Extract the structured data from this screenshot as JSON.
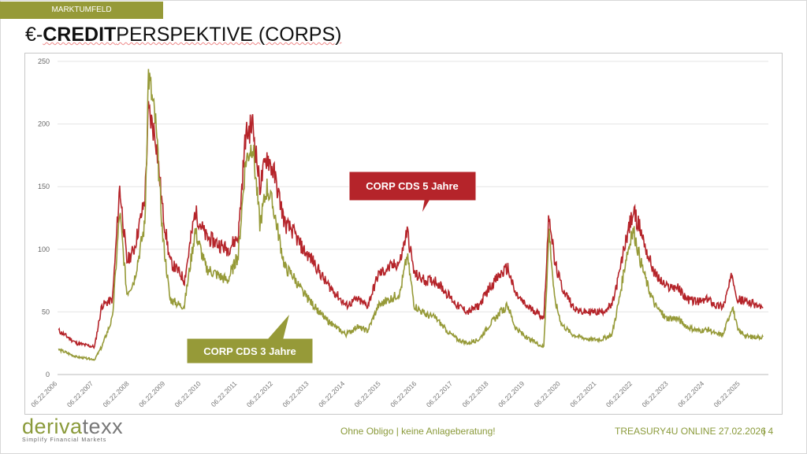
{
  "header": {
    "section": "MARKTUMFELD",
    "title_prefix": "€-",
    "title_bold": "CREDIT",
    "title_rest": "PERSPEKTIVE (CORPS)"
  },
  "footer": {
    "logo": "derivatexx",
    "logo_tagline": "Simplify Financial Markets",
    "disclaimer": "Ohne Obligo | keine Anlageberatung!",
    "event": "TREASURY4U ONLINE 27.02.2026",
    "page": "| 4"
  },
  "colors": {
    "cds5": "#b5242a",
    "cds3": "#969a38"
  },
  "chart_data": {
    "type": "line",
    "title": "€-CREDITPERSPEKTIVE (CORPS)",
    "ylim": [
      0,
      250
    ],
    "yticks": [
      0,
      50,
      100,
      150,
      200,
      250
    ],
    "xticks": [
      "06.22.2006",
      "06.22.2007",
      "06.22.2008",
      "06.22.2009",
      "06.22.2010",
      "06.22.2011",
      "06.22.2012",
      "06.22.2013",
      "06.22.2014",
      "06.22.2015",
      "06.22.2016",
      "06.22.2017",
      "06.22.2018",
      "06.22.2019",
      "06.22.2020",
      "06.22.2021",
      "06.22.2022",
      "06.22.2023",
      "06.22.2024",
      "06.22.2025"
    ],
    "x": [
      2006.5,
      2007.0,
      2007.5,
      2007.7,
      2008.0,
      2008.2,
      2008.4,
      2008.6,
      2008.9,
      2009.0,
      2009.2,
      2009.4,
      2009.6,
      2009.9,
      2010.0,
      2010.3,
      2010.6,
      2010.9,
      2011.2,
      2011.5,
      2011.7,
      2011.9,
      2012.1,
      2012.3,
      2012.5,
      2012.8,
      2013.0,
      2013.3,
      2013.6,
      2013.9,
      2014.2,
      2014.5,
      2014.8,
      2015.1,
      2015.4,
      2015.7,
      2016.0,
      2016.2,
      2016.4,
      2016.7,
      2017.0,
      2017.3,
      2017.6,
      2017.9,
      2018.2,
      2018.5,
      2018.8,
      2019.0,
      2019.2,
      2019.5,
      2019.8,
      2020.0,
      2020.15,
      2020.3,
      2020.5,
      2020.8,
      2021.0,
      2021.3,
      2021.6,
      2021.9,
      2022.1,
      2022.3,
      2022.5,
      2022.7,
      2022.9,
      2023.1,
      2023.4,
      2023.7,
      2024.0,
      2024.3,
      2024.6,
      2024.8,
      2025.0,
      2025.25,
      2025.4,
      2025.7,
      2026.1
    ],
    "series": [
      {
        "name": "CORP CDS 5 Jahre",
        "values": [
          35,
          25,
          22,
          55,
          60,
          150,
          90,
          100,
          140,
          210,
          190,
          130,
          90,
          80,
          75,
          130,
          110,
          105,
          100,
          110,
          190,
          200,
          150,
          175,
          160,
          120,
          115,
          100,
          90,
          75,
          65,
          55,
          60,
          55,
          80,
          85,
          90,
          115,
          80,
          75,
          75,
          65,
          55,
          50,
          55,
          70,
          80,
          85,
          65,
          55,
          50,
          45,
          130,
          90,
          70,
          55,
          50,
          50,
          50,
          55,
          80,
          110,
          130,
          115,
          95,
          80,
          70,
          70,
          60,
          58,
          60,
          55,
          55,
          80,
          60,
          58,
          53
        ]
      },
      {
        "name": "CORP CDS 3 Jahre",
        "values": [
          20,
          14,
          12,
          22,
          45,
          130,
          65,
          75,
          120,
          240,
          200,
          110,
          60,
          55,
          55,
          115,
          85,
          80,
          75,
          95,
          170,
          185,
          120,
          150,
          130,
          85,
          80,
          65,
          55,
          45,
          38,
          32,
          38,
          35,
          55,
          60,
          65,
          95,
          55,
          48,
          45,
          35,
          28,
          25,
          28,
          40,
          50,
          55,
          38,
          30,
          25,
          22,
          115,
          60,
          40,
          32,
          30,
          28,
          28,
          32,
          60,
          95,
          115,
          90,
          70,
          55,
          45,
          45,
          38,
          35,
          36,
          32,
          32,
          55,
          35,
          30,
          30
        ]
      }
    ]
  }
}
